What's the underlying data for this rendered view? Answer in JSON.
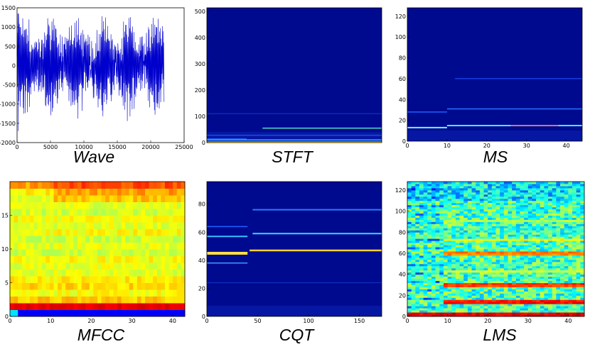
{
  "chart_data": [
    {
      "id": "wave",
      "type": "line",
      "title": "Wave",
      "xlim": [
        0,
        25000
      ],
      "ylim": [
        -2000,
        1500
      ],
      "xticks": [
        0,
        5000,
        10000,
        15000,
        20000,
        25000
      ],
      "yticks": [
        -2000,
        -1500,
        -1000,
        -500,
        0,
        500,
        1000,
        1500
      ],
      "signal_extent": [
        0,
        22000
      ],
      "line_color": "#0000cc"
    },
    {
      "id": "stft",
      "type": "heatmap",
      "title": "STFT",
      "xlim": [
        0,
        44
      ],
      "ylim": [
        0,
        513
      ],
      "xticks": [],
      "yticks": [
        0,
        100,
        200,
        300,
        400,
        500
      ],
      "bands": [
        {
          "y": 2,
          "x0": 0,
          "x1": 44,
          "color": "#ffd020",
          "width": 1.5
        },
        {
          "y": 10,
          "x0": 0,
          "x1": 44,
          "color": "#33b0ff",
          "width": 1.5
        },
        {
          "y": 14,
          "x0": 0,
          "x1": 10,
          "color": "#1e6bff",
          "width": 1.5
        },
        {
          "y": 28,
          "x0": 0,
          "x1": 44,
          "color": "#1a4fe0",
          "width": 1.5
        },
        {
          "y": 55,
          "x0": 14,
          "x1": 44,
          "color": "#4de0c0",
          "width": 1.5
        },
        {
          "y": 110,
          "x0": 0,
          "x1": 44,
          "color": "#0e2fbf",
          "width": 1.2
        }
      ]
    },
    {
      "id": "ms",
      "type": "heatmap",
      "title": "MS",
      "xlim": [
        0,
        44
      ],
      "ylim": [
        0,
        128
      ],
      "xticks": [
        0,
        10,
        20,
        30,
        40
      ],
      "yticks": [
        0,
        20,
        40,
        60,
        80,
        100,
        120
      ],
      "bands": [
        {
          "y": 13,
          "x0": 0,
          "x1": 10,
          "color": "#7cf0ff",
          "width": 2
        },
        {
          "y": 15,
          "x0": 10,
          "x1": 44,
          "color": "#55e4ff",
          "width": 2
        },
        {
          "y": 15,
          "x0": 26,
          "x1": 38,
          "color": "#ff5050",
          "width": 1.5
        },
        {
          "y": 28,
          "x0": 0,
          "x1": 10,
          "color": "#1f5fff",
          "width": 1.5
        },
        {
          "y": 31,
          "x0": 10,
          "x1": 44,
          "color": "#2a74ff",
          "width": 1.5
        },
        {
          "y": 60,
          "x0": 12,
          "x1": 44,
          "color": "#1a3fe0",
          "width": 1.5
        }
      ]
    },
    {
      "id": "mfcc",
      "type": "heatmap",
      "title": "MFCC",
      "xlim": [
        0,
        43
      ],
      "ylim": [
        0,
        20
      ],
      "xticks": [
        0,
        10,
        20,
        30,
        40
      ],
      "yticks": [
        0,
        5,
        10,
        15
      ],
      "coefficients": 20,
      "frames": 44,
      "row_values": [
        0.12,
        0.9,
        0.68,
        0.62,
        0.66,
        0.64,
        0.6,
        0.6,
        0.62,
        0.58,
        0.6,
        0.58,
        0.62,
        0.6,
        0.62,
        0.58,
        0.6,
        0.6,
        0.64,
        0.72
      ]
    },
    {
      "id": "cqt",
      "type": "heatmap",
      "title": "CQT",
      "xlim": [
        0,
        172
      ],
      "ylim": [
        0,
        96
      ],
      "xticks": [
        0,
        50,
        100,
        150
      ],
      "yticks": [
        0,
        20,
        40,
        60,
        80
      ],
      "bands": [
        {
          "y": 45,
          "x0": 0,
          "x1": 40,
          "color": "#ffe040",
          "width": 4
        },
        {
          "y": 47,
          "x0": 42,
          "x1": 172,
          "color": "#ffd030",
          "width": 2.5
        },
        {
          "y": 38,
          "x0": 0,
          "x1": 40,
          "color": "#3a9cff",
          "width": 1.5
        },
        {
          "y": 57,
          "x0": 0,
          "x1": 40,
          "color": "#35c0ff",
          "width": 2
        },
        {
          "y": 59,
          "x0": 45,
          "x1": 172,
          "color": "#40d0ff",
          "width": 2
        },
        {
          "y": 64,
          "x0": 0,
          "x1": 40,
          "color": "#1f60ff",
          "width": 1.5
        },
        {
          "y": 76,
          "x0": 45,
          "x1": 172,
          "color": "#2a7cff",
          "width": 2
        },
        {
          "y": 24,
          "x0": 0,
          "x1": 172,
          "color": "#0e2fbf",
          "width": 1.2
        }
      ]
    },
    {
      "id": "lms",
      "type": "heatmap",
      "title": "LMS",
      "xlim": [
        0,
        44
      ],
      "ylim": [
        0,
        128
      ],
      "xticks": [
        0,
        10,
        20,
        30,
        40
      ],
      "yticks": [
        0,
        20,
        40,
        60,
        80,
        100,
        120
      ],
      "bins": 64,
      "frames": 44
    }
  ]
}
